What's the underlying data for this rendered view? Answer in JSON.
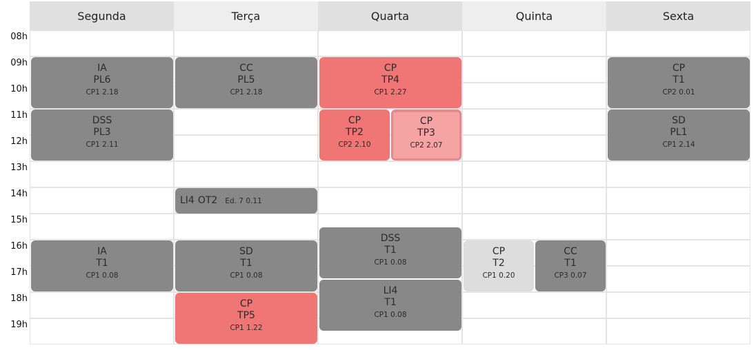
{
  "days": [
    "Segunda",
    "Terça",
    "Quarta",
    "Quinta",
    "Sexta"
  ],
  "hours": [
    "08h",
    "09h",
    "10h",
    "11h",
    "12h",
    "13h",
    "14h",
    "15h",
    "16h",
    "17h",
    "18h",
    "19h"
  ],
  "colors": {
    "header_bg": "#e0e0e0",
    "header_bg_alt": "#eeeeee",
    "event_gray": "#888888",
    "event_red": "#f07575",
    "event_pink": "#f5a3a3",
    "event_light": "#dddddd"
  },
  "events": [
    {
      "day": "Segunda",
      "start": "09h",
      "end": "11h",
      "subject": "IA",
      "type": "PL6",
      "room": "CP1 2.18",
      "color": "gray"
    },
    {
      "day": "Segunda",
      "start": "11h",
      "end": "13h",
      "subject": "DSS",
      "type": "PL3",
      "room": "CP1 2.11",
      "color": "gray"
    },
    {
      "day": "Segunda",
      "start": "16h",
      "end": "18h",
      "subject": "IA",
      "type": "T1",
      "room": "CP1 0.08",
      "color": "gray"
    },
    {
      "day": "Terça",
      "start": "09h",
      "end": "11h",
      "subject": "CC",
      "type": "PL5",
      "room": "CP1 2.18",
      "color": "gray"
    },
    {
      "day": "Terça",
      "start": "14h",
      "end": "15h",
      "subject": "LI4",
      "type": "OT2",
      "room": "Ed. 7 0.11",
      "color": "gray"
    },
    {
      "day": "Terça",
      "start": "16h",
      "end": "18h",
      "subject": "SD",
      "type": "T1",
      "room": "CP1 0.08",
      "color": "gray"
    },
    {
      "day": "Terça",
      "start": "18h",
      "end": "20h",
      "subject": "CP",
      "type": "TP5",
      "room": "CP1 1.22",
      "color": "red"
    },
    {
      "day": "Quarta",
      "start": "09h",
      "end": "11h",
      "subject": "CP",
      "type": "TP4",
      "room": "CP1 2.27",
      "color": "red"
    },
    {
      "day": "Quarta",
      "start": "11h",
      "end": "13h",
      "subject": "CP",
      "type": "TP2",
      "room": "CP2 2.10",
      "color": "red"
    },
    {
      "day": "Quarta",
      "start": "11h",
      "end": "13h",
      "subject": "CP",
      "type": "TP3",
      "room": "CP2 2.07",
      "color": "pink"
    },
    {
      "day": "Quarta",
      "start": "15h30",
      "end": "17h30",
      "subject": "DSS",
      "type": "T1",
      "room": "CP1 0.08",
      "color": "gray"
    },
    {
      "day": "Quarta",
      "start": "17h30",
      "end": "19h30",
      "subject": "LI4",
      "type": "T1",
      "room": "CP1 0.08",
      "color": "gray"
    },
    {
      "day": "Quinta",
      "start": "16h",
      "end": "18h",
      "subject": "CP",
      "type": "T2",
      "room": "CP1 0.20",
      "color": "light"
    },
    {
      "day": "Quinta",
      "start": "16h",
      "end": "18h",
      "subject": "CC",
      "type": "T1",
      "room": "CP3 0.07",
      "color": "gray"
    },
    {
      "day": "Sexta",
      "start": "09h",
      "end": "11h",
      "subject": "CP",
      "type": "T1",
      "room": "CP2 0.01",
      "color": "gray"
    },
    {
      "day": "Sexta",
      "start": "11h",
      "end": "13h",
      "subject": "SD",
      "type": "PL1",
      "room": "CP1 2.14",
      "color": "gray"
    }
  ]
}
